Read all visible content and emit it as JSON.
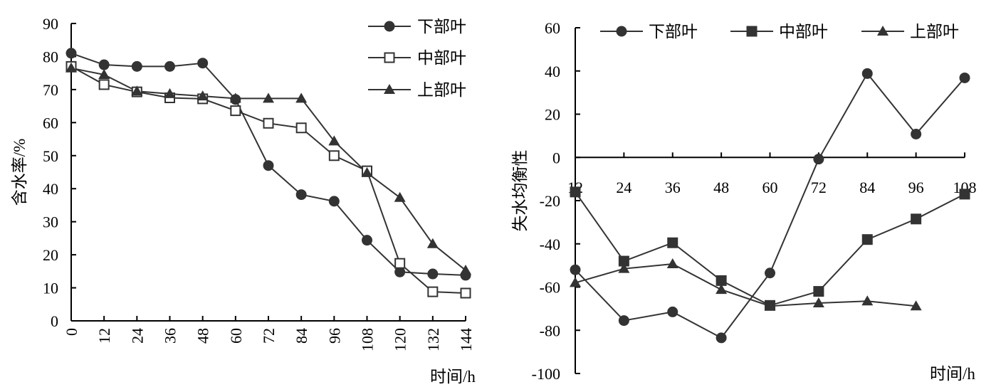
{
  "chart_data": [
    {
      "type": "line",
      "x": [
        0,
        12,
        24,
        36,
        48,
        60,
        72,
        84,
        96,
        108,
        120,
        132,
        144
      ],
      "series": [
        {
          "name": "下部叶",
          "marker": "circle-filled",
          "values": [
            81,
            77.5,
            77,
            77,
            78,
            67,
            47,
            38.2,
            36.2,
            24.4,
            14.8,
            14.2,
            13.8
          ]
        },
        {
          "name": "中部叶",
          "marker": "square-open",
          "values": [
            77,
            71.5,
            69.3,
            67.5,
            67.2,
            63.6,
            59.8,
            58.4,
            50,
            45.4,
            17.4,
            8.8,
            8.4
          ]
        },
        {
          "name": "上部叶",
          "marker": "triangle-filled",
          "values": [
            76.5,
            74.5,
            69.5,
            68.7,
            68,
            67.3,
            67.3,
            67.3,
            54.4,
            44.8,
            37.3,
            23.3,
            15.3
          ]
        }
      ],
      "xlabel": "时间/h",
      "ylabel": "含水率/%",
      "xticks": [
        "0",
        "12",
        "24",
        "36",
        "48",
        "60",
        "72",
        "84",
        "96",
        "108",
        "120",
        "132",
        "144"
      ],
      "yticks": [
        "0",
        "10",
        "20",
        "30",
        "40",
        "50",
        "60",
        "70",
        "80",
        "90"
      ],
      "ylim": [
        0,
        90
      ],
      "xlim": [
        0,
        144
      ],
      "legend": "top-right, vertical",
      "grid": false,
      "line_color": "#333333"
    },
    {
      "type": "line",
      "x": [
        12,
        24,
        36,
        48,
        60,
        72,
        84,
        96,
        108
      ],
      "series": [
        {
          "name": "下部叶",
          "marker": "circle-filled",
          "values": [
            -52,
            -75.5,
            -71.5,
            -83.5,
            -53.5,
            -0.8,
            38.8,
            10.8,
            36.8
          ]
        },
        {
          "name": "中部叶",
          "marker": "square-filled",
          "values": [
            -16,
            -48,
            -39.5,
            -57,
            -68.5,
            -62,
            -38,
            -28.5,
            -17
          ]
        },
        {
          "name": "上部叶",
          "marker": "triangle-filled",
          "values": [
            -58,
            -51.5,
            -49.3,
            -61.2,
            -68.8,
            -67.4,
            -66.5,
            -68.8,
            null
          ]
        }
      ],
      "xlabel": "时间/h",
      "ylabel": "失水均衡性",
      "xticks": [
        "12",
        "24",
        "36",
        "48",
        "60",
        "72",
        "84",
        "96",
        "108"
      ],
      "yticks": [
        "-100",
        "-80",
        "-60",
        "-40",
        "-20",
        "0",
        "20",
        "40",
        "60"
      ],
      "ylim": [
        -100,
        60
      ],
      "xlim": [
        12,
        108
      ],
      "legend": "top, horizontal",
      "grid": false,
      "line_color": "#333333"
    }
  ]
}
